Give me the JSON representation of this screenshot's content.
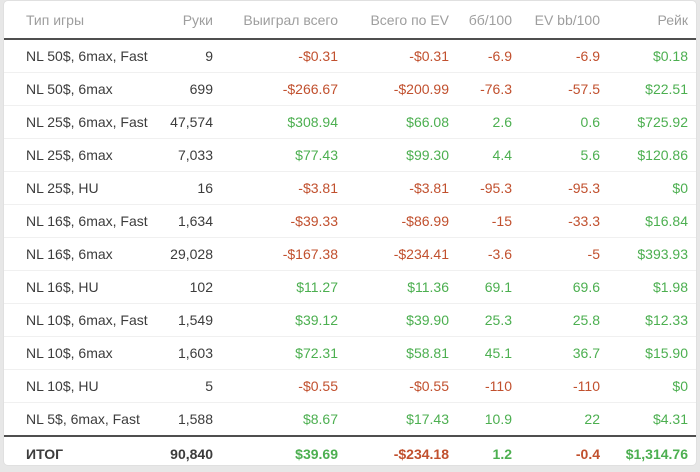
{
  "table": {
    "columns": [
      {
        "key": "game-type",
        "label": "Тип игры"
      },
      {
        "key": "hands",
        "label": "Руки"
      },
      {
        "key": "won-total",
        "label": "Выиграл всего"
      },
      {
        "key": "ev-total",
        "label": "Всего по EV"
      },
      {
        "key": "bb-100",
        "label": "бб/100"
      },
      {
        "key": "ev-bb-100",
        "label": "EV bb/100"
      },
      {
        "key": "rake",
        "label": "Рейк"
      }
    ],
    "rows": [
      [
        "NL 50$, 6max, Fast",
        "9",
        "-$0.31",
        "-$0.31",
        "-6.9",
        "-6.9",
        "$0.18"
      ],
      [
        "NL 50$, 6max",
        "699",
        "-$266.67",
        "-$200.99",
        "-76.3",
        "-57.5",
        "$22.51"
      ],
      [
        "NL 25$, 6max, Fast",
        "47,574",
        "$308.94",
        "$66.08",
        "2.6",
        "0.6",
        "$725.92"
      ],
      [
        "NL 25$, 6max",
        "7,033",
        "$77.43",
        "$99.30",
        "4.4",
        "5.6",
        "$120.86"
      ],
      [
        "NL 25$, HU",
        "16",
        "-$3.81",
        "-$3.81",
        "-95.3",
        "-95.3",
        "$0"
      ],
      [
        "NL 16$, 6max, Fast",
        "1,634",
        "-$39.33",
        "-$86.99",
        "-15",
        "-33.3",
        "$16.84"
      ],
      [
        "NL 16$, 6max",
        "29,028",
        "-$167.38",
        "-$234.41",
        "-3.6",
        "-5",
        "$393.93"
      ],
      [
        "NL 16$, HU",
        "102",
        "$11.27",
        "$11.36",
        "69.1",
        "69.6",
        "$1.98"
      ],
      [
        "NL 10$, 6max, Fast",
        "1,549",
        "$39.12",
        "$39.90",
        "25.3",
        "25.8",
        "$12.33"
      ],
      [
        "NL 10$, 6max",
        "1,603",
        "$72.31",
        "$58.81",
        "45.1",
        "36.7",
        "$15.90"
      ],
      [
        "NL 10$, HU",
        "5",
        "-$0.55",
        "-$0.55",
        "-110",
        "-110",
        "$0"
      ],
      [
        "NL 5$, 6max, Fast",
        "1,588",
        "$8.67",
        "$17.43",
        "10.9",
        "22",
        "$4.31"
      ]
    ],
    "total_row": [
      "ИТОГ",
      "90,840",
      "$39.69",
      "-$234.18",
      "1.2",
      "-0.4",
      "$1,314.76"
    ]
  },
  "colors": {
    "positive": "#4caf50",
    "negative": "#c1502e",
    "header_text": "#9e9e9e",
    "body_text": "#3c3c3c",
    "strong_divider": "#4f4f4f",
    "light_divider": "#f0f0f0",
    "page_background": "#e7e7e7",
    "card_background": "#ffffff"
  }
}
